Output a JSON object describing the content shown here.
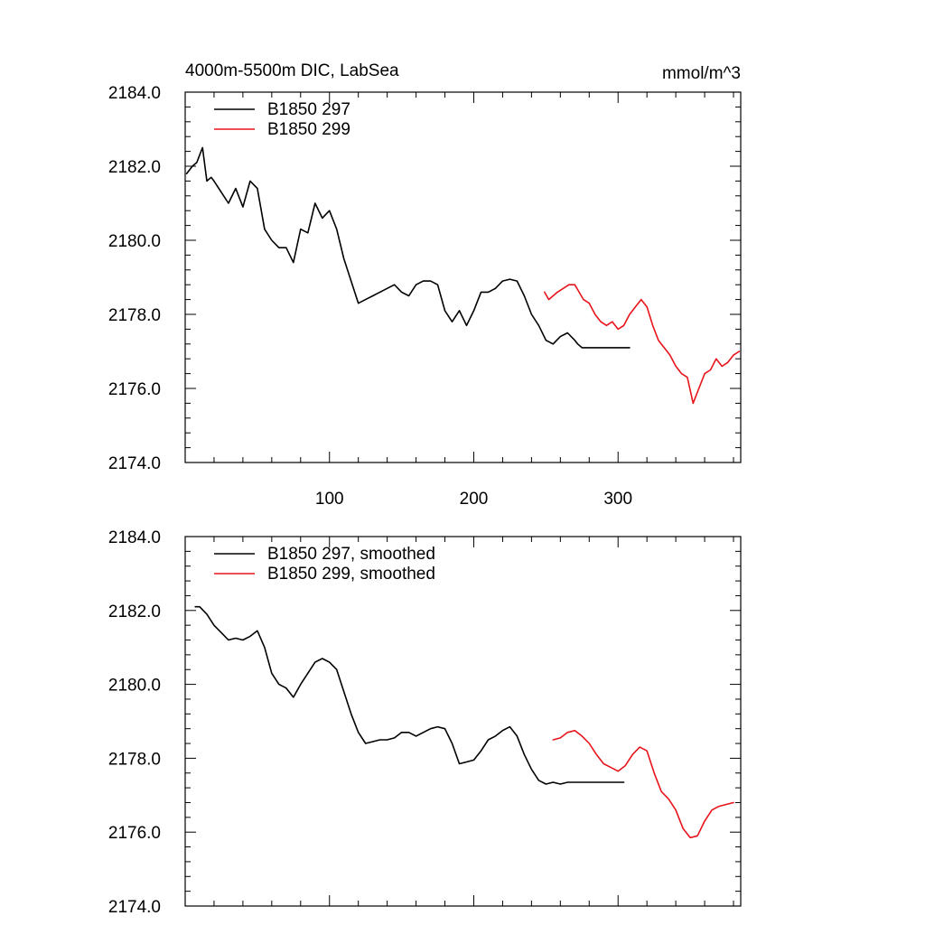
{
  "figure": {
    "title_left": "4000m-5500m DIC, LabSea",
    "title_right": "mmol/m^3"
  },
  "colors": {
    "series_a": "#000000",
    "series_b": "#e8141b",
    "background": "#ffffff",
    "axis": "#000000"
  },
  "chart_data": [
    {
      "type": "line",
      "xlim": [
        0,
        385
      ],
      "ylim": [
        2174,
        2184
      ],
      "yticks": [
        2174,
        2176,
        2178,
        2180,
        2182,
        2184
      ],
      "ytick_labels": [
        "2174.0",
        "2176.0",
        "2178.0",
        "2180.0",
        "2182.0",
        "2184.0"
      ],
      "xticks": [
        100,
        200,
        300
      ],
      "xtick_labels": [
        "100",
        "200",
        "300"
      ],
      "legend_position": "top-left",
      "grid": false,
      "series": [
        {
          "name": "B1850 297",
          "color": "#000000",
          "x": [
            1,
            5,
            8,
            11,
            12,
            15,
            18,
            20,
            25,
            30,
            35,
            40,
            45,
            50,
            55,
            60,
            65,
            70,
            75,
            80,
            85,
            90,
            95,
            100,
            105,
            110,
            115,
            120,
            125,
            130,
            135,
            140,
            145,
            150,
            155,
            160,
            165,
            170,
            175,
            180,
            185,
            190,
            195,
            200,
            205,
            210,
            215,
            220,
            225,
            230,
            235,
            240,
            245,
            250,
            255,
            260,
            265,
            270,
            272,
            275,
            280,
            285,
            290,
            295,
            300,
            305,
            308
          ],
          "y": [
            2181.8,
            2182.0,
            2182.1,
            2182.4,
            2182.5,
            2181.6,
            2181.7,
            2181.6,
            2181.3,
            2181.0,
            2181.4,
            2180.9,
            2181.6,
            2181.4,
            2180.3,
            2180.0,
            2179.8,
            2179.8,
            2179.4,
            2180.3,
            2180.2,
            2181.0,
            2180.6,
            2180.8,
            2180.3,
            2179.5,
            2178.9,
            2178.3,
            2178.4,
            2178.5,
            2178.6,
            2178.7,
            2178.8,
            2178.6,
            2178.5,
            2178.8,
            2178.9,
            2178.9,
            2178.8,
            2178.1,
            2177.8,
            2178.1,
            2177.7,
            2178.1,
            2178.6,
            2178.6,
            2178.7,
            2178.9,
            2178.95,
            2178.9,
            2178.5,
            2178.0,
            2177.7,
            2177.3,
            2177.2,
            2177.4,
            2177.5,
            2177.3,
            2177.2,
            2177.1,
            2177.1,
            2177.1,
            2177.1,
            2177.1,
            2177.1,
            2177.1,
            2177.1
          ]
        },
        {
          "name": "B1850 299",
          "color": "#e8141b",
          "x": [
            249,
            252,
            255,
            258,
            262,
            266,
            270,
            273,
            276,
            280,
            284,
            288,
            292,
            296,
            300,
            304,
            308,
            312,
            316,
            320,
            324,
            328,
            332,
            336,
            340,
            344,
            348,
            352,
            356,
            360,
            364,
            368,
            372,
            376,
            380,
            384
          ],
          "y": [
            2178.6,
            2178.4,
            2178.5,
            2178.6,
            2178.7,
            2178.8,
            2178.8,
            2178.6,
            2178.4,
            2178.3,
            2178.0,
            2177.8,
            2177.7,
            2177.8,
            2177.6,
            2177.7,
            2178.0,
            2178.2,
            2178.4,
            2178.2,
            2177.7,
            2177.3,
            2177.1,
            2176.9,
            2176.6,
            2176.4,
            2176.3,
            2175.6,
            2176.0,
            2176.4,
            2176.5,
            2176.8,
            2176.6,
            2176.7,
            2176.9,
            2177.0
          ]
        }
      ]
    },
    {
      "type": "line",
      "xlim": [
        0,
        385
      ],
      "ylim": [
        2174,
        2184
      ],
      "yticks": [
        2174,
        2176,
        2178,
        2180,
        2182,
        2184
      ],
      "ytick_labels": [
        "2174.0",
        "2176.0",
        "2178.0",
        "2180.0",
        "2182.0",
        "2184.0"
      ],
      "xticks": [
        100,
        200,
        300
      ],
      "xtick_labels": [
        "",
        "",
        ""
      ],
      "legend_position": "top-left",
      "grid": false,
      "series": [
        {
          "name": "B1850 297, smoothed",
          "color": "#000000",
          "x": [
            7,
            10,
            15,
            20,
            25,
            30,
            35,
            40,
            45,
            50,
            55,
            60,
            65,
            70,
            75,
            80,
            85,
            90,
            95,
            100,
            105,
            110,
            115,
            120,
            125,
            130,
            135,
            140,
            145,
            150,
            155,
            160,
            165,
            170,
            175,
            180,
            185,
            190,
            195,
            200,
            205,
            210,
            215,
            220,
            225,
            230,
            235,
            240,
            245,
            250,
            255,
            260,
            265,
            270,
            275,
            280,
            285,
            290,
            295,
            300,
            304
          ],
          "y": [
            2182.1,
            2182.1,
            2181.9,
            2181.6,
            2181.4,
            2181.2,
            2181.25,
            2181.2,
            2181.3,
            2181.45,
            2181.0,
            2180.3,
            2180.0,
            2179.9,
            2179.65,
            2180.0,
            2180.3,
            2180.6,
            2180.7,
            2180.6,
            2180.4,
            2179.8,
            2179.2,
            2178.7,
            2178.4,
            2178.45,
            2178.5,
            2178.5,
            2178.55,
            2178.7,
            2178.7,
            2178.6,
            2178.7,
            2178.8,
            2178.85,
            2178.8,
            2178.4,
            2177.85,
            2177.9,
            2177.95,
            2178.2,
            2178.5,
            2178.6,
            2178.75,
            2178.85,
            2178.6,
            2178.1,
            2177.7,
            2177.4,
            2177.3,
            2177.35,
            2177.3,
            2177.35,
            2177.35,
            2177.35,
            2177.35,
            2177.35,
            2177.35,
            2177.35,
            2177.35,
            2177.35
          ]
        },
        {
          "name": "B1850 299, smoothed",
          "color": "#e8141b",
          "x": [
            255,
            260,
            265,
            270,
            275,
            280,
            285,
            290,
            295,
            300,
            305,
            310,
            315,
            320,
            325,
            330,
            335,
            340,
            345,
            350,
            355,
            360,
            365,
            370,
            375,
            380
          ],
          "y": [
            2178.5,
            2178.55,
            2178.7,
            2178.75,
            2178.6,
            2178.4,
            2178.1,
            2177.85,
            2177.75,
            2177.65,
            2177.8,
            2178.1,
            2178.3,
            2178.2,
            2177.6,
            2177.1,
            2176.9,
            2176.6,
            2176.1,
            2175.85,
            2175.9,
            2176.3,
            2176.6,
            2176.7,
            2176.75,
            2176.8
          ]
        }
      ]
    }
  ]
}
